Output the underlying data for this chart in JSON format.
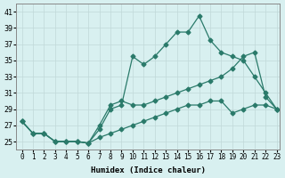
{
  "xlabel": "Humidex (Indice chaleur)",
  "bg_color": "#d8f0f0",
  "grid_color": "#c0d8d8",
  "line_color": "#2a7a6a",
  "xlim": [
    0,
    23
  ],
  "ylim": [
    24,
    42
  ],
  "yticks": [
    25,
    27,
    29,
    31,
    33,
    35,
    37,
    39,
    41
  ],
  "xticks": [
    0,
    1,
    2,
    3,
    4,
    5,
    6,
    7,
    8,
    9,
    10,
    11,
    12,
    13,
    14,
    15,
    16,
    17,
    18,
    19,
    20,
    21,
    22,
    23
  ],
  "series1_x": [
    0,
    1,
    2,
    3,
    4,
    5,
    6,
    7,
    8,
    9,
    10,
    11,
    12,
    13,
    14,
    15,
    16,
    17,
    18,
    19,
    20,
    21,
    22,
    23
  ],
  "series1_y": [
    27.5,
    26,
    26,
    25,
    25,
    25,
    24.8,
    26.5,
    29,
    29.5,
    35.5,
    34.5,
    35.5,
    37,
    38.5,
    38.5,
    40.5,
    37.5,
    36,
    35.5,
    35,
    33,
    31,
    29
  ],
  "series2_x": [
    0,
    1,
    2,
    3,
    4,
    5,
    6,
    7,
    8,
    9,
    10,
    11,
    12,
    13,
    14,
    15,
    16,
    17,
    18,
    19,
    20,
    21,
    22,
    23
  ],
  "series2_y": [
    27.5,
    26,
    26,
    25,
    25,
    25,
    24.8,
    27,
    29.5,
    30,
    29.5,
    29.5,
    30,
    30.5,
    31,
    31.5,
    32,
    32.5,
    33,
    34,
    35.5,
    36,
    30.5,
    29
  ],
  "series3_x": [
    0,
    1,
    2,
    3,
    4,
    5,
    6,
    7,
    8,
    9,
    10,
    11,
    12,
    13,
    14,
    15,
    16,
    17,
    18,
    19,
    20,
    21,
    22,
    23
  ],
  "series3_y": [
    27.5,
    26,
    26,
    25,
    25,
    25,
    24.8,
    25.5,
    26,
    26.5,
    27,
    27.5,
    28,
    28.5,
    29,
    29.5,
    29.5,
    30,
    30,
    28.5,
    29,
    29.5,
    29.5,
    29
  ]
}
